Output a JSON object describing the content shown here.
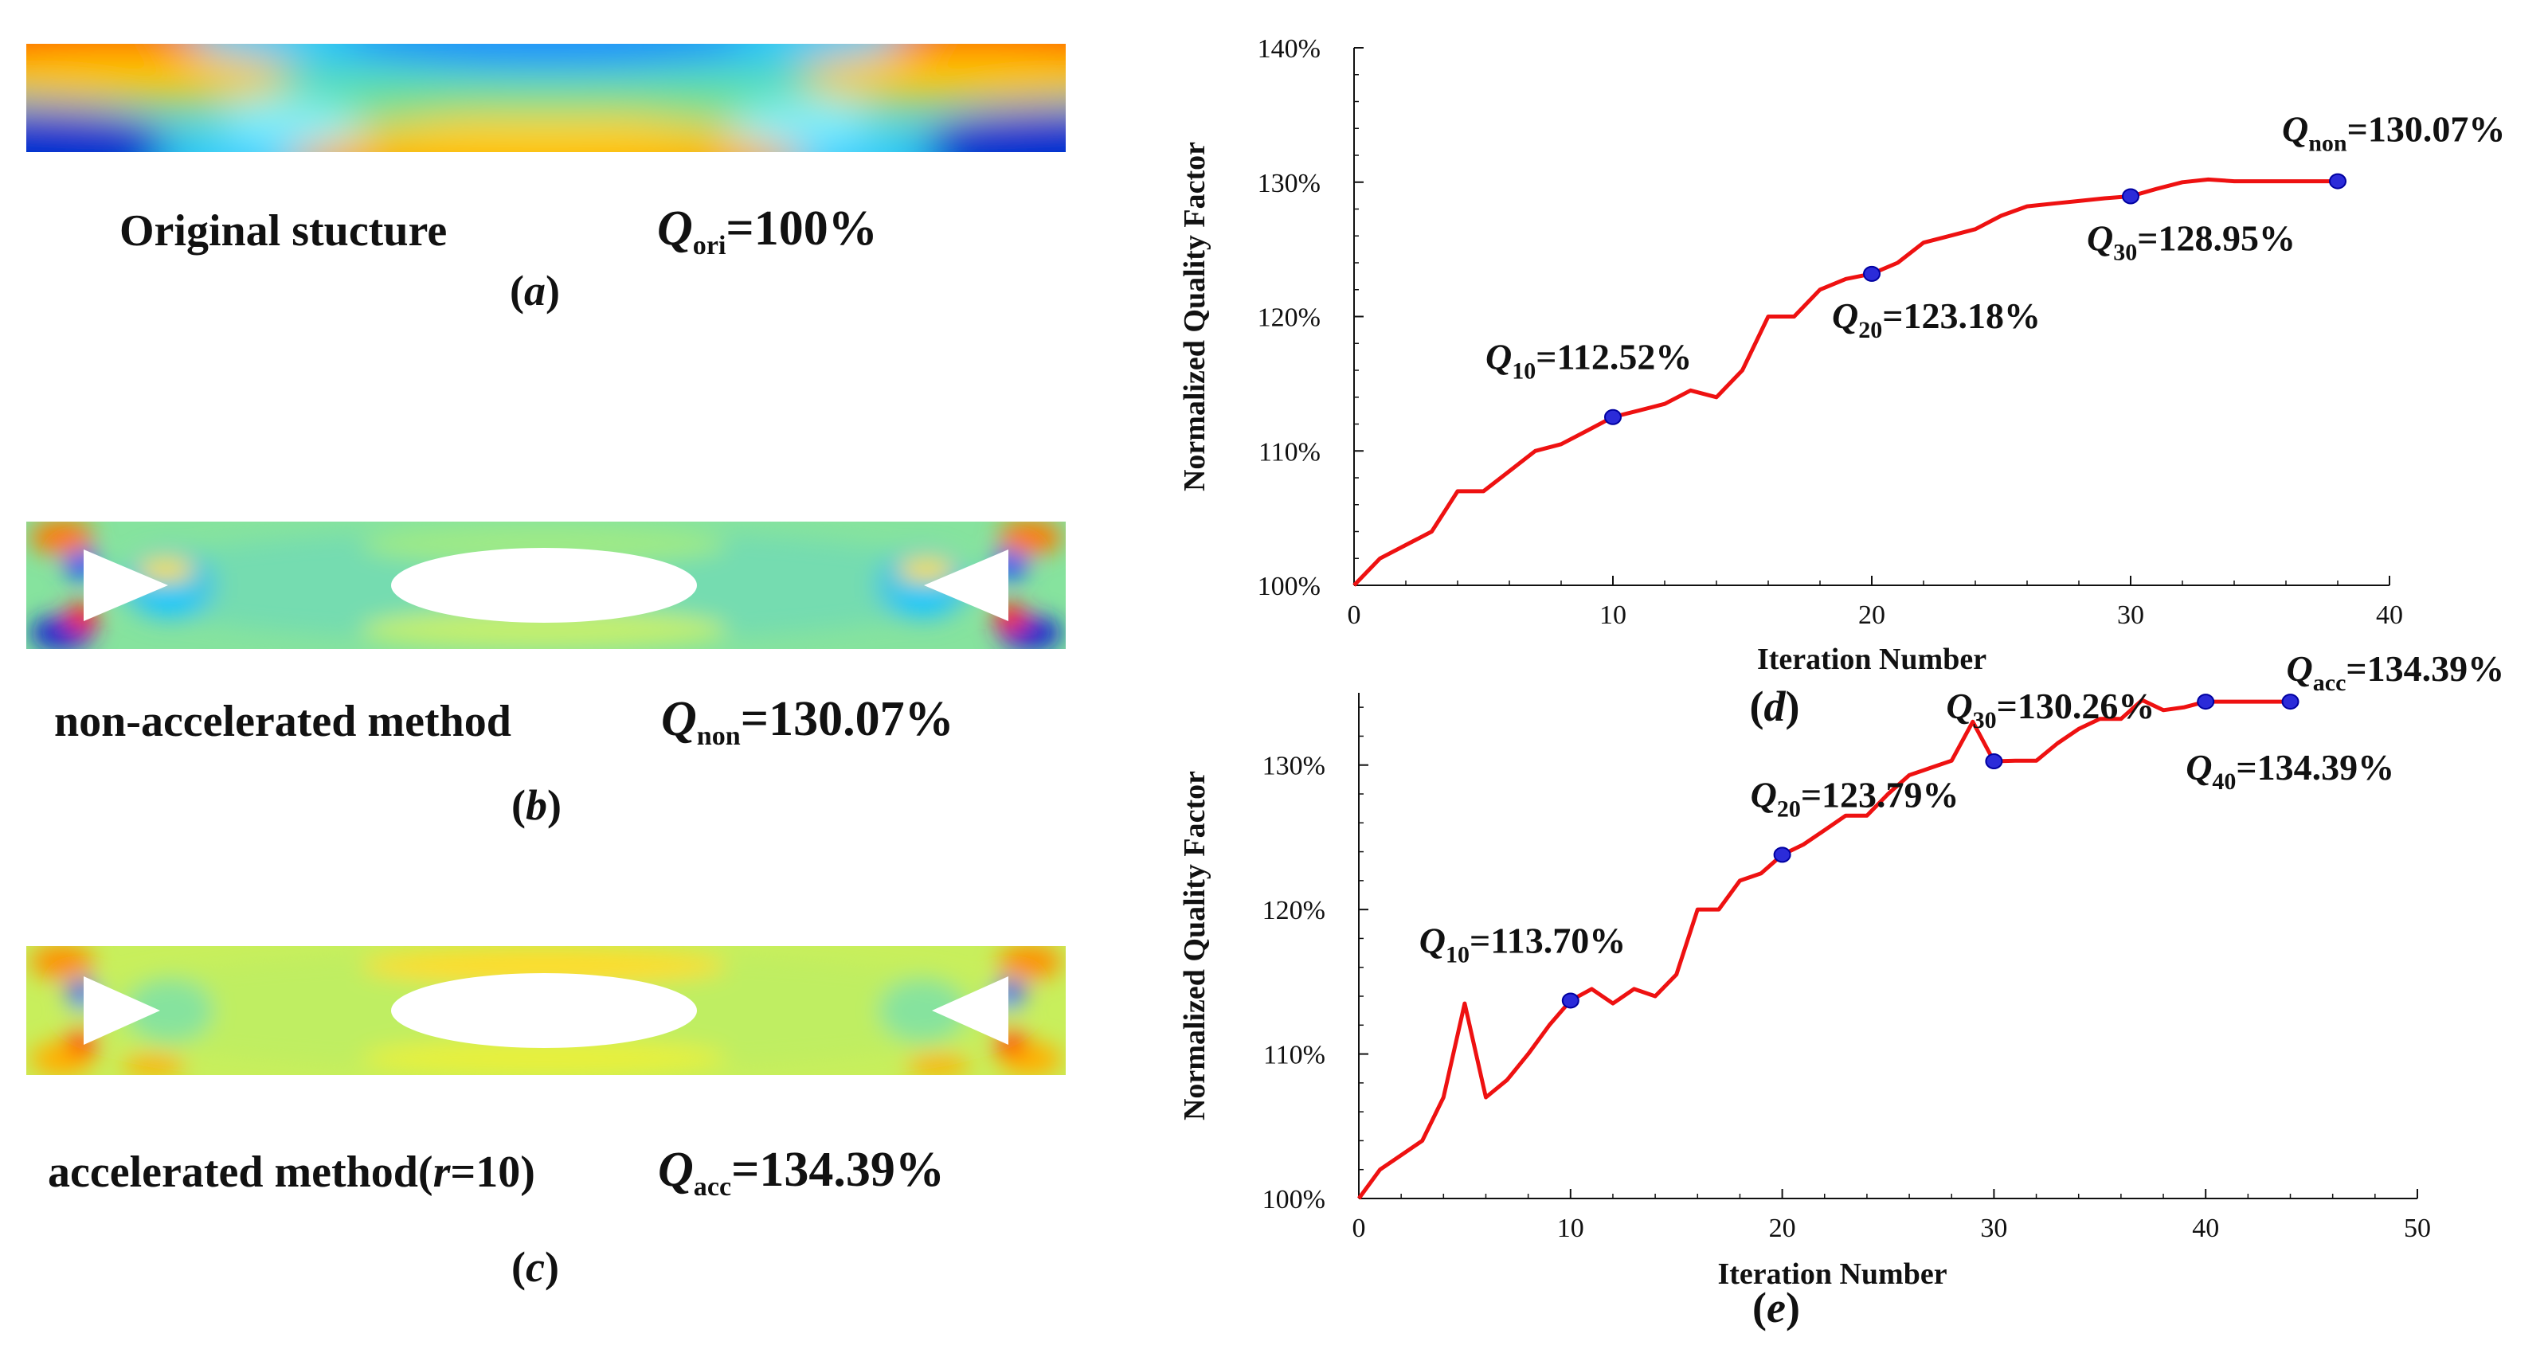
{
  "panels": {
    "a": {
      "label": "(a)",
      "letter": "a",
      "title": "Original stucture",
      "q_symbol": "Q",
      "q_sub": "ori",
      "q_value": "=100%"
    },
    "b": {
      "label": "(b)",
      "letter": "b",
      "title": "non-accelerated method",
      "q_symbol": "Q",
      "q_sub": "non",
      "q_value": "=130.07%"
    },
    "c": {
      "label": "(c)",
      "letter": "c",
      "title_prefix": "accelerated method(",
      "title_r": "r",
      "title_suffix": "=10)",
      "q_symbol": "Q",
      "q_sub": "acc",
      "q_value": "=134.39%"
    }
  },
  "colors": {
    "line": "#ee1111",
    "marker": "#2b2bd9",
    "marker_edge": "#0000a0",
    "axis": "#111111"
  },
  "chart_data": [
    {
      "id": "d",
      "type": "line",
      "label": "(d)",
      "letter": "d",
      "xlabel": "Iteration Number",
      "ylabel": "Normalized Quality Factor",
      "xlim": [
        0,
        40
      ],
      "ylim": [
        100,
        140
      ],
      "xticks": [
        0,
        10,
        20,
        30,
        40
      ],
      "yticks": [
        100,
        110,
        120,
        130,
        140
      ],
      "ytick_labels": [
        "100%",
        "110%",
        "120%",
        "130%",
        "140%"
      ],
      "series": [
        {
          "name": "Normalized Quality Factor",
          "x": [
            0,
            1,
            2,
            3,
            4,
            5,
            6,
            7,
            8,
            9,
            10,
            11,
            12,
            13,
            14,
            15,
            16,
            17,
            18,
            19,
            20,
            21,
            22,
            23,
            24,
            25,
            26,
            27,
            28,
            29,
            30,
            31,
            32,
            33,
            34,
            35,
            36,
            37,
            38
          ],
          "y": [
            100,
            102,
            103,
            104,
            107,
            107,
            108.5,
            110,
            110.5,
            111.5,
            112.52,
            113,
            113.5,
            114.5,
            114,
            116,
            120,
            120,
            122,
            122.8,
            123.18,
            124,
            125.5,
            126,
            126.5,
            127.5,
            128.2,
            128.4,
            128.6,
            128.8,
            128.95,
            129.5,
            130,
            130.2,
            130.07,
            130.07,
            130.07,
            130.07,
            130.07
          ]
        }
      ],
      "markers": [
        {
          "x": 10,
          "y": 112.52,
          "sym": "Q",
          "sub": "10",
          "text": "=112.52%"
        },
        {
          "x": 20,
          "y": 123.18,
          "sym": "Q",
          "sub": "20",
          "text": "=123.18%"
        },
        {
          "x": 30,
          "y": 128.95,
          "sym": "Q",
          "sub": "30",
          "text": "=128.95%"
        },
        {
          "x": 38,
          "y": 130.07,
          "sym": "Q",
          "sub": "non",
          "text": "=130.07%"
        }
      ]
    },
    {
      "id": "e",
      "type": "line",
      "label": "(e)",
      "letter": "e",
      "xlabel": "Iteration Number",
      "ylabel": "Normalized Quality Factor",
      "xlim": [
        0,
        50
      ],
      "ylim": [
        100,
        135
      ],
      "xticks": [
        0,
        10,
        20,
        30,
        40,
        50
      ],
      "yticks": [
        100,
        110,
        120,
        130
      ],
      "ytick_labels": [
        "100%",
        "110%",
        "120%",
        "130%"
      ],
      "series": [
        {
          "name": "Normalized Quality Factor",
          "x": [
            0,
            1,
            2,
            3,
            4,
            5,
            6,
            7,
            8,
            9,
            10,
            11,
            12,
            13,
            14,
            15,
            16,
            17,
            18,
            19,
            20,
            21,
            22,
            23,
            24,
            25,
            26,
            27,
            28,
            29,
            30,
            31,
            32,
            33,
            34,
            35,
            36,
            37,
            38,
            39,
            40,
            41,
            42,
            43,
            44
          ],
          "y": [
            100,
            102,
            103,
            104,
            107,
            113.5,
            107,
            108.2,
            110,
            112,
            113.7,
            114.5,
            113.5,
            114.5,
            114,
            115.5,
            120,
            120,
            122,
            122.5,
            123.79,
            124.5,
            125.5,
            126.5,
            126.5,
            128,
            129.3,
            129.8,
            130.3,
            133,
            130.26,
            130.3,
            130.3,
            131.5,
            132.5,
            133.2,
            133.2,
            134.5,
            133.8,
            134,
            134.39,
            134.39,
            134.39,
            134.39,
            134.39
          ]
        }
      ],
      "markers": [
        {
          "x": 10,
          "y": 113.7,
          "sym": "Q",
          "sub": "10",
          "text": "=113.70%"
        },
        {
          "x": 20,
          "y": 123.79,
          "sym": "Q",
          "sub": "20",
          "text": "=123.79%"
        },
        {
          "x": 30,
          "y": 130.26,
          "sym": "Q",
          "sub": "30",
          "text": "=130.26%"
        },
        {
          "x": 40,
          "y": 134.39,
          "sym": "Q",
          "sub": "40",
          "text": "=134.39%"
        },
        {
          "x": 44,
          "y": 134.39,
          "sym": "Q",
          "sub": "acc",
          "text": "=134.39%"
        }
      ]
    }
  ]
}
